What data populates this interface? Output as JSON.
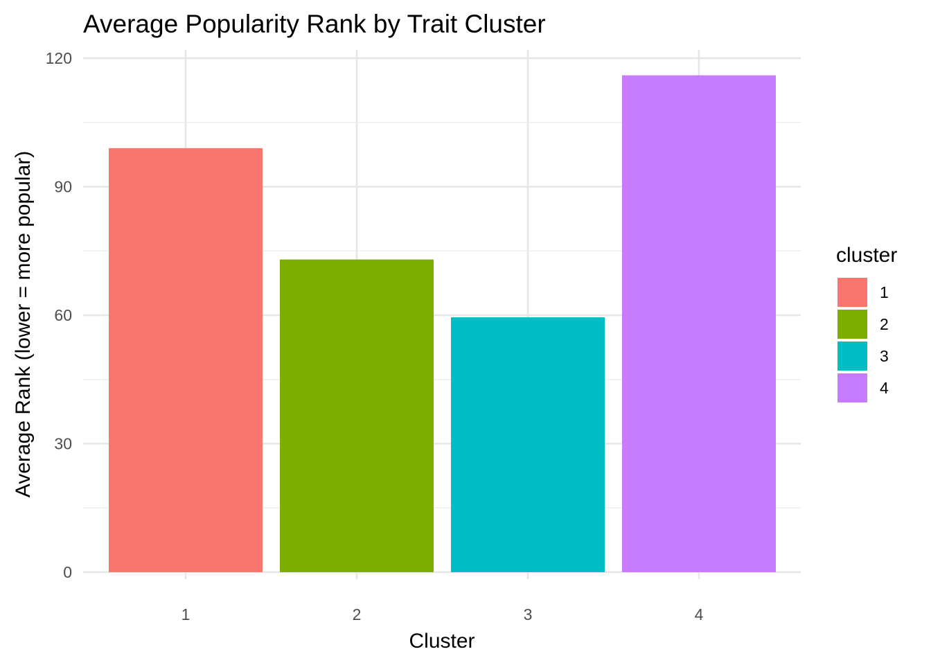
{
  "chart_data": {
    "type": "bar",
    "title": "Average Popularity Rank by Trait Cluster",
    "xlabel": "Cluster",
    "ylabel": "Average Rank (lower = more popular)",
    "categories": [
      "1",
      "2",
      "3",
      "4"
    ],
    "values": [
      99,
      73,
      59.5,
      116
    ],
    "ylim": [
      0,
      120
    ],
    "yticks": [
      "0",
      "30",
      "60",
      "90",
      "120"
    ],
    "colors": [
      "#F8766D",
      "#7CAE00",
      "#00BFC4",
      "#C77CFF"
    ],
    "grid": true,
    "legend": {
      "title": "cluster",
      "position": "right",
      "labels": [
        "1",
        "2",
        "3",
        "4"
      ]
    }
  }
}
